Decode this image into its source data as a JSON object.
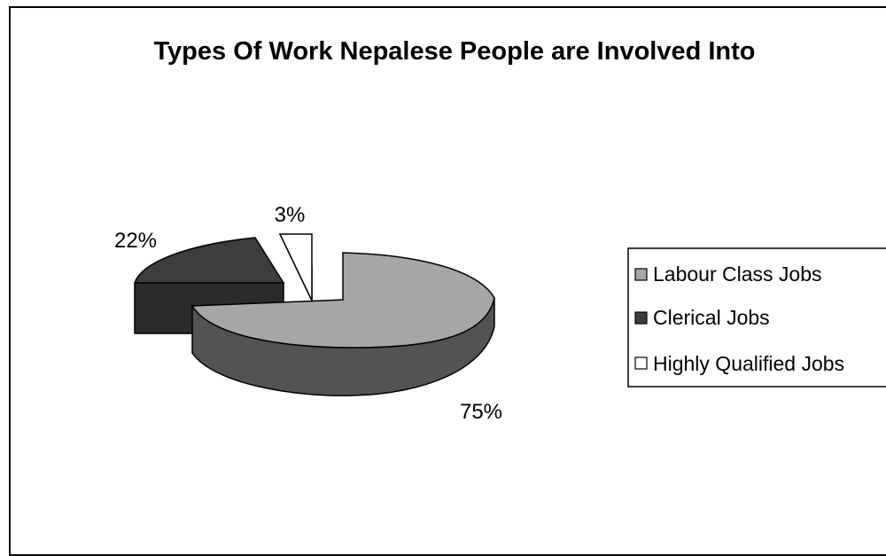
{
  "chart_data": {
    "type": "pie",
    "title": "Types Of Work Nepalese People are Involved Into",
    "labels": [
      "Labour Class Jobs",
      "Clerical Jobs",
      "Highly Qualified Jobs"
    ],
    "values": [
      75,
      22,
      3
    ],
    "data_labels": [
      "75%",
      "22%",
      "3%"
    ],
    "colors": [
      "#a6a6a6",
      "#3d3d3d",
      "#ffffff"
    ],
    "legend_position": "right",
    "style": "3d-exploded"
  }
}
